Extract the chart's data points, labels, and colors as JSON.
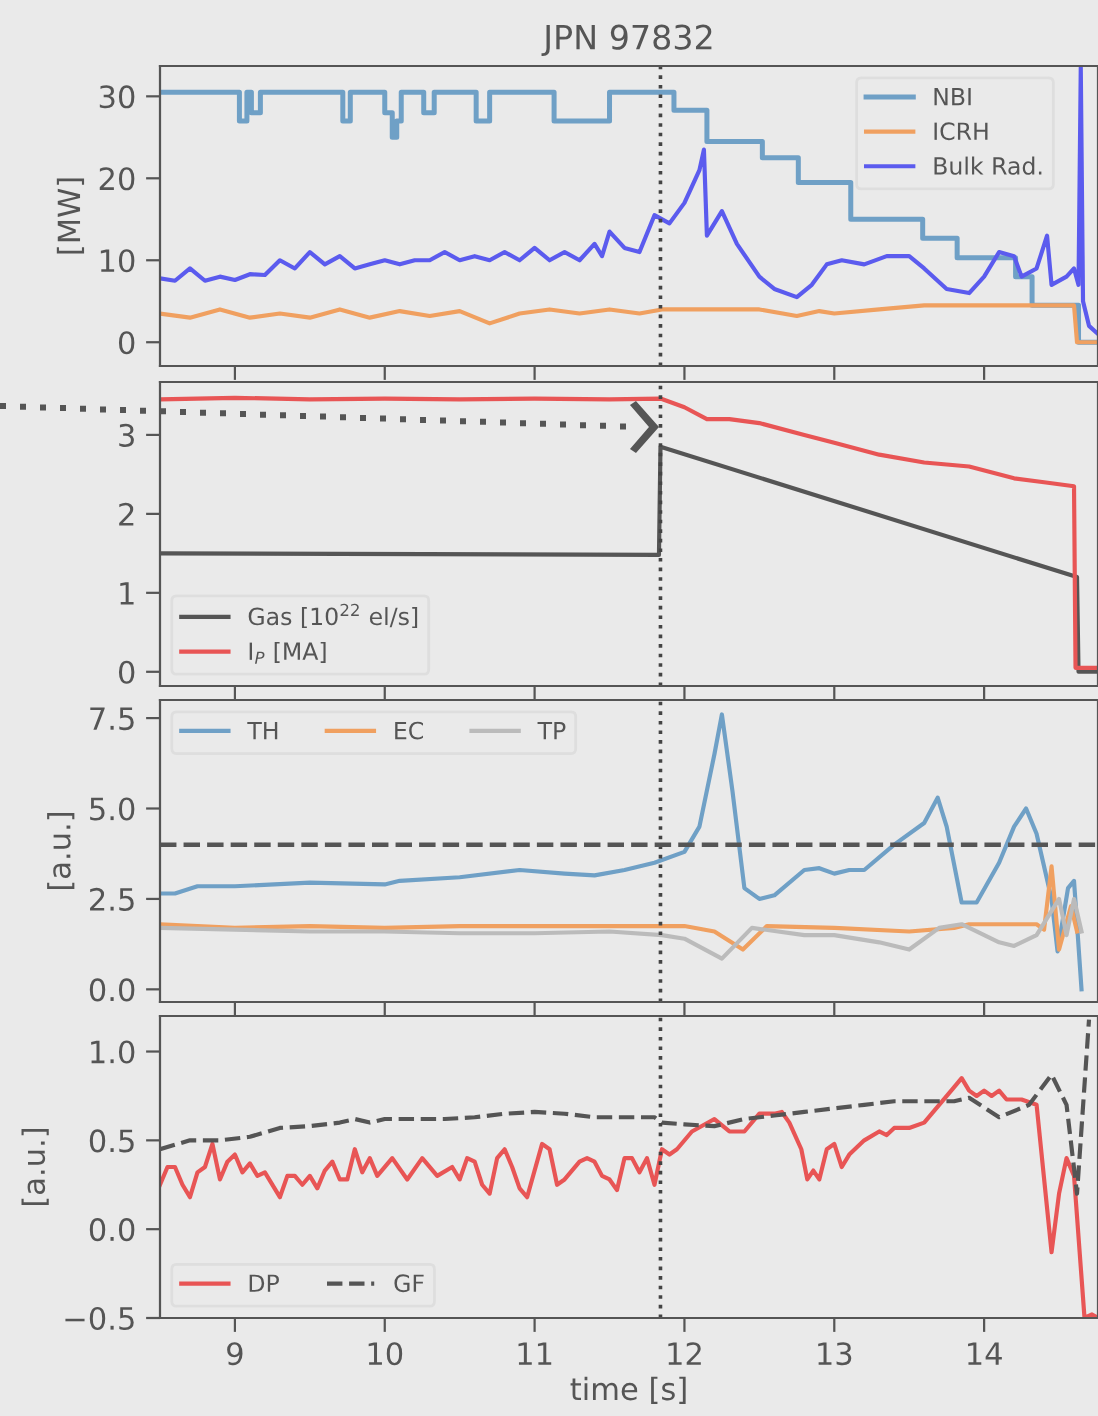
{
  "chart_data": [
    {
      "type": "line",
      "title": "JPN 97832",
      "ylabel": "[MW]",
      "xlim": [
        8.5,
        14.76
      ],
      "xticks": [
        9,
        10,
        11,
        12,
        13,
        14
      ],
      "ylim": [
        -2.9,
        33.7
      ],
      "yticks": [
        0,
        10,
        20,
        30
      ],
      "tick_labels": "y",
      "grid": false,
      "legend": "top right",
      "ref_lines": [
        {
          "axis": "x",
          "value": 11.84,
          "color": "#444444",
          "line_style": "dotted"
        }
      ],
      "series": [
        {
          "name": "NBI",
          "type": "step",
          "color": "#6fa0c6",
          "x": [
            8.5,
            9.03,
            9.08,
            9.11,
            9.17,
            9.72,
            9.77,
            10.0,
            10.05,
            10.08,
            10.11,
            10.26,
            10.33,
            10.61,
            10.7,
            11.13,
            11.5,
            11.93,
            12.15,
            12.52,
            12.76,
            13.11,
            13.59,
            13.82,
            14.21,
            14.32,
            14.63,
            14.76
          ],
          "values": [
            30.5,
            27,
            30.5,
            28,
            30.5,
            27,
            30.5,
            28,
            25,
            27,
            30.5,
            28,
            30.5,
            27,
            30.5,
            27,
            30.5,
            28.3,
            24.5,
            22.5,
            19.5,
            15,
            12.7,
            10.3,
            8,
            4.5,
            0,
            0
          ]
        },
        {
          "name": "ICRH",
          "color": "#f0a060",
          "x": [
            8.5,
            8.7,
            8.9,
            9.1,
            9.3,
            9.5,
            9.7,
            9.9,
            10.1,
            10.3,
            10.5,
            10.7,
            10.9,
            11.1,
            11.3,
            11.5,
            11.7,
            11.85,
            12.0,
            12.5,
            12.75,
            12.9,
            13.0,
            13.3,
            13.6,
            14.0,
            14.3,
            14.6,
            14.62,
            14.76
          ],
          "values": [
            3.5,
            3,
            4,
            3,
            3.5,
            3,
            4,
            3,
            3.8,
            3.2,
            3.8,
            2.3,
            3.5,
            4,
            3.5,
            4,
            3.5,
            4,
            4,
            4,
            3.2,
            3.8,
            3.5,
            4,
            4.5,
            4.5,
            4.5,
            4.5,
            0,
            0
          ]
        },
        {
          "name": "Bulk Rad.",
          "color": "#5b5bee",
          "x": [
            8.5,
            8.6,
            8.7,
            8.8,
            8.9,
            9.0,
            9.1,
            9.2,
            9.3,
            9.4,
            9.5,
            9.6,
            9.7,
            9.8,
            9.9,
            10.0,
            10.1,
            10.2,
            10.3,
            10.4,
            10.5,
            10.6,
            10.7,
            10.8,
            10.9,
            11.0,
            11.1,
            11.2,
            11.3,
            11.4,
            11.45,
            11.5,
            11.6,
            11.7,
            11.8,
            11.9,
            12.0,
            12.1,
            12.13,
            12.15,
            12.25,
            12.35,
            12.5,
            12.6,
            12.75,
            12.85,
            12.95,
            13.05,
            13.2,
            13.35,
            13.5,
            13.6,
            13.75,
            13.9,
            14.0,
            14.1,
            14.2,
            14.25,
            14.35,
            14.42,
            14.45,
            14.55,
            14.6,
            14.63,
            14.645,
            14.66,
            14.7,
            14.76
          ],
          "values": [
            7.8,
            7.5,
            9,
            7.5,
            8,
            7.6,
            8.3,
            8.2,
            10,
            9,
            11,
            9.5,
            10.5,
            9,
            9.5,
            10,
            9.5,
            10,
            10,
            11,
            10,
            10.5,
            10,
            11,
            10,
            11.5,
            10,
            11,
            10,
            12,
            10.5,
            13.5,
            11.5,
            11,
            15.5,
            14.5,
            17,
            21,
            23.5,
            13,
            16,
            12,
            8,
            6.5,
            5.5,
            7,
            9.5,
            10,
            9.5,
            10.5,
            10.5,
            9,
            6.5,
            6,
            8,
            11,
            10.5,
            8,
            9,
            13,
            7,
            8,
            9,
            7,
            33.5,
            5,
            2,
            1
          ]
        }
      ]
    },
    {
      "type": "line",
      "xlim": [
        8.5,
        14.76
      ],
      "xticks": [
        9,
        10,
        11,
        12,
        13,
        14
      ],
      "ylim": [
        -0.18,
        3.67
      ],
      "yticks": [
        0,
        1,
        2,
        3
      ],
      "tick_labels": "y",
      "grid": false,
      "legend": "bottom left",
      "ref_lines": [
        {
          "axis": "x",
          "value": 11.84,
          "color": "#444444",
          "line_style": "dotted"
        }
      ],
      "series": [
        {
          "name": "Gas [10$^{22}$ el/s]",
          "color": "#555555",
          "x": [
            8.5,
            11.83,
            11.84,
            14.62,
            14.63,
            14.76
          ],
          "values": [
            1.5,
            1.48,
            2.85,
            1.2,
            0,
            0
          ]
        },
        {
          "name": "I$_{P}$ [MA]",
          "color": "#e85555",
          "x": [
            8.5,
            9.0,
            9.5,
            10.0,
            10.5,
            11.0,
            11.5,
            11.84,
            12.0,
            12.15,
            12.3,
            12.5,
            12.8,
            13.0,
            13.3,
            13.6,
            13.9,
            14.2,
            14.4,
            14.6,
            14.61,
            14.76
          ],
          "values": [
            3.45,
            3.47,
            3.45,
            3.46,
            3.45,
            3.46,
            3.45,
            3.46,
            3.35,
            3.2,
            3.2,
            3.15,
            3.0,
            2.9,
            2.75,
            2.65,
            2.6,
            2.45,
            2.4,
            2.35,
            0.05,
            0.05
          ]
        }
      ]
    },
    {
      "type": "line",
      "ylabel": "[a.u.]",
      "xlim": [
        8.5,
        14.76
      ],
      "xticks": [
        9,
        10,
        11,
        12,
        13,
        14
      ],
      "ylim": [
        -0.35,
        8.0
      ],
      "yticks": [
        {
          "value": 0,
          "label": "0.0"
        },
        2.5,
        {
          "value": 5,
          "label": "5.0"
        },
        7.5
      ],
      "tick_labels": "y",
      "grid": false,
      "legend": "top left",
      "ref_lines": [
        {
          "axis": "x",
          "value": 11.84,
          "color": "#444444",
          "line_style": "dotted"
        },
        {
          "axis": "y",
          "value": 4.0,
          "color": "#555555",
          "line_style": "dashed"
        }
      ],
      "series": [
        {
          "name": "TH",
          "color": "#6fa0c6",
          "x": [
            8.5,
            8.6,
            8.75,
            9.0,
            9.5,
            10.0,
            10.1,
            10.5,
            10.9,
            11.2,
            11.4,
            11.6,
            11.8,
            12.0,
            12.1,
            12.2,
            12.25,
            12.32,
            12.4,
            12.5,
            12.6,
            12.8,
            12.9,
            13.0,
            13.1,
            13.2,
            13.4,
            13.6,
            13.69,
            13.75,
            13.85,
            13.95,
            14.1,
            14.2,
            14.28,
            14.35,
            14.45,
            14.49,
            14.56,
            14.6,
            14.65
          ],
          "values": [
            2.65,
            2.65,
            2.85,
            2.85,
            2.95,
            2.9,
            3.0,
            3.1,
            3.3,
            3.2,
            3.15,
            3.3,
            3.5,
            3.8,
            4.5,
            6.5,
            7.6,
            5.5,
            2.8,
            2.5,
            2.6,
            3.3,
            3.35,
            3.2,
            3.3,
            3.3,
            4.0,
            4.6,
            5.3,
            4.5,
            2.4,
            2.4,
            3.5,
            4.5,
            5.0,
            4.3,
            2.5,
            1.05,
            2.8,
            3.0,
            0.0
          ]
        },
        {
          "name": "EC",
          "color": "#f0a060",
          "x": [
            8.5,
            9.0,
            9.5,
            10.0,
            10.5,
            11.0,
            11.5,
            12.0,
            12.2,
            12.39,
            12.55,
            13.0,
            13.5,
            13.8,
            13.9,
            14.35,
            14.4,
            14.45,
            14.5,
            14.58,
            14.62
          ],
          "values": [
            1.8,
            1.7,
            1.75,
            1.7,
            1.75,
            1.75,
            1.75,
            1.75,
            1.6,
            1.1,
            1.75,
            1.7,
            1.6,
            1.7,
            1.8,
            1.8,
            1.65,
            3.4,
            1.1,
            2.3,
            1.6
          ]
        },
        {
          "name": "TP",
          "color": "#bbbbbb",
          "x": [
            8.5,
            9.0,
            9.5,
            10.0,
            10.5,
            11.0,
            11.5,
            11.85,
            12.0,
            12.25,
            12.45,
            12.8,
            13.0,
            13.3,
            13.5,
            13.7,
            13.85,
            14.1,
            14.2,
            14.35,
            14.5,
            14.55,
            14.6,
            14.65
          ],
          "values": [
            1.7,
            1.65,
            1.6,
            1.6,
            1.55,
            1.55,
            1.6,
            1.5,
            1.4,
            0.85,
            1.7,
            1.5,
            1.5,
            1.3,
            1.1,
            1.7,
            1.8,
            1.3,
            1.2,
            1.5,
            2.5,
            1.5,
            2.5,
            1.6
          ]
        }
      ]
    },
    {
      "type": "line",
      "ylabel": "[a.u.]",
      "xlabel": "time [s]",
      "xlim": [
        8.5,
        14.76
      ],
      "xticks": [
        9,
        10,
        11,
        12,
        13,
        14
      ],
      "ylim": [
        -0.5,
        1.2
      ],
      "yticks": [
        {
          "value": -0.5,
          "label": "−0.5"
        },
        {
          "value": 0,
          "label": "0.0"
        },
        0.5,
        {
          "value": 1,
          "label": "1.0"
        }
      ],
      "grid": false,
      "legend": "bottom left",
      "ref_lines": [
        {
          "axis": "x",
          "value": 11.84,
          "color": "#444444",
          "line_style": "dotted"
        }
      ],
      "series": [
        {
          "name": "DP",
          "color": "#e85555",
          "x": [
            8.5,
            8.55,
            8.6,
            8.65,
            8.7,
            8.75,
            8.8,
            8.85,
            8.9,
            8.95,
            9.0,
            9.05,
            9.1,
            9.15,
            9.2,
            9.3,
            9.35,
            9.4,
            9.45,
            9.5,
            9.55,
            9.6,
            9.65,
            9.7,
            9.75,
            9.8,
            9.85,
            9.9,
            9.95,
            10.05,
            10.15,
            10.25,
            10.35,
            10.45,
            10.5,
            10.55,
            10.6,
            10.65,
            10.7,
            10.75,
            10.8,
            10.85,
            10.9,
            10.95,
            11.05,
            11.1,
            11.15,
            11.2,
            11.3,
            11.35,
            11.4,
            11.45,
            11.5,
            11.55,
            11.6,
            11.65,
            11.7,
            11.75,
            11.8,
            11.85,
            11.9,
            11.95,
            12.05,
            12.2,
            12.3,
            12.4,
            12.5,
            12.6,
            12.65,
            12.7,
            12.78,
            12.82,
            12.86,
            12.9,
            12.95,
            13.0,
            13.05,
            13.1,
            13.2,
            13.3,
            13.35,
            13.4,
            13.5,
            13.6,
            13.7,
            13.8,
            13.85,
            13.9,
            13.95,
            14.0,
            14.05,
            14.1,
            14.15,
            14.25,
            14.35,
            14.45,
            14.5,
            14.55,
            14.6,
            14.67,
            14.72,
            14.76
          ],
          "values": [
            0.25,
            0.35,
            0.35,
            0.25,
            0.18,
            0.32,
            0.35,
            0.48,
            0.28,
            0.38,
            0.42,
            0.32,
            0.37,
            0.3,
            0.32,
            0.18,
            0.3,
            0.3,
            0.25,
            0.3,
            0.23,
            0.33,
            0.38,
            0.28,
            0.28,
            0.45,
            0.32,
            0.4,
            0.3,
            0.4,
            0.28,
            0.4,
            0.3,
            0.35,
            0.28,
            0.4,
            0.38,
            0.25,
            0.2,
            0.4,
            0.45,
            0.35,
            0.23,
            0.18,
            0.48,
            0.45,
            0.25,
            0.28,
            0.38,
            0.4,
            0.38,
            0.3,
            0.28,
            0.22,
            0.4,
            0.4,
            0.32,
            0.4,
            0.25,
            0.45,
            0.42,
            0.45,
            0.55,
            0.62,
            0.55,
            0.55,
            0.65,
            0.65,
            0.66,
            0.6,
            0.45,
            0.28,
            0.33,
            0.28,
            0.45,
            0.48,
            0.35,
            0.42,
            0.5,
            0.55,
            0.53,
            0.57,
            0.57,
            0.6,
            0.7,
            0.8,
            0.85,
            0.78,
            0.75,
            0.78,
            0.75,
            0.78,
            0.73,
            0.73,
            0.7,
            -0.13,
            0.2,
            0.4,
            0.3,
            -0.5,
            -0.48,
            -0.5
          ]
        },
        {
          "name": "GF",
          "color": "#555555",
          "line_style": "dashed",
          "x": [
            8.5,
            8.7,
            8.9,
            9.1,
            9.3,
            9.5,
            9.7,
            9.8,
            9.9,
            10.0,
            10.2,
            10.4,
            10.6,
            10.8,
            11.0,
            11.2,
            11.4,
            11.6,
            11.8,
            11.85,
            12.0,
            12.2,
            12.4,
            12.6,
            12.8,
            13.0,
            13.2,
            13.4,
            13.6,
            13.8,
            13.9,
            14.1,
            14.3,
            14.45,
            14.55,
            14.62,
            14.7
          ],
          "values": [
            0.45,
            0.5,
            0.5,
            0.52,
            0.57,
            0.58,
            0.6,
            0.62,
            0.6,
            0.62,
            0.62,
            0.62,
            0.63,
            0.65,
            0.66,
            0.65,
            0.63,
            0.63,
            0.63,
            0.6,
            0.59,
            0.58,
            0.62,
            0.64,
            0.66,
            0.68,
            0.7,
            0.72,
            0.72,
            0.72,
            0.74,
            0.63,
            0.7,
            0.87,
            0.7,
            0.2,
            1.18
          ]
        }
      ]
    }
  ]
}
